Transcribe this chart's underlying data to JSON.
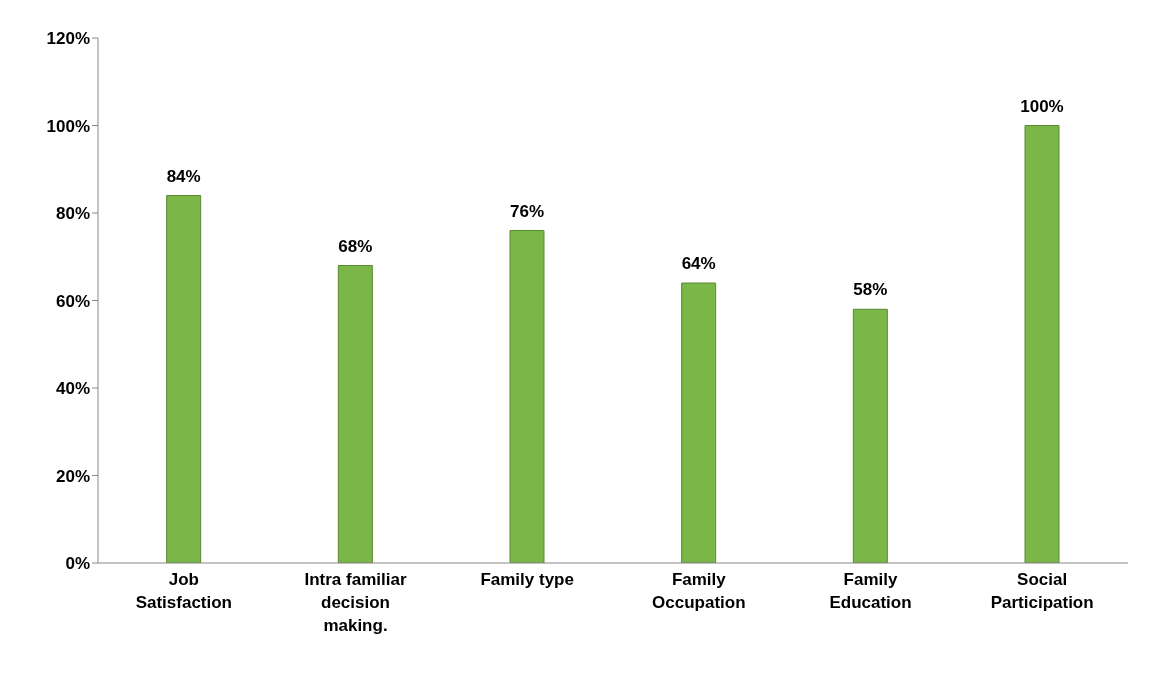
{
  "chart_data": {
    "type": "bar",
    "categories": [
      "Job Satisfaction",
      "Intra familiar decision making.",
      "Family type",
      "Family Occupation",
      "Family Education",
      "Social Participation"
    ],
    "values": [
      84,
      68,
      76,
      64,
      58,
      100
    ],
    "value_labels": [
      "84%",
      "68%",
      "76%",
      "64%",
      "58%",
      "100%"
    ],
    "color": "#7ab648",
    "ylim": [
      0,
      120
    ],
    "yticks": [
      {
        "value": 0,
        "label": "0%"
      },
      {
        "value": 20,
        "label": "20%"
      },
      {
        "value": 40,
        "label": "40%"
      },
      {
        "value": 60,
        "label": "60%"
      },
      {
        "value": 80,
        "label": "80%"
      },
      {
        "value": 100,
        "label": "100%"
      },
      {
        "value": 120,
        "label": "120%"
      }
    ],
    "grid": false,
    "legend": false
  }
}
